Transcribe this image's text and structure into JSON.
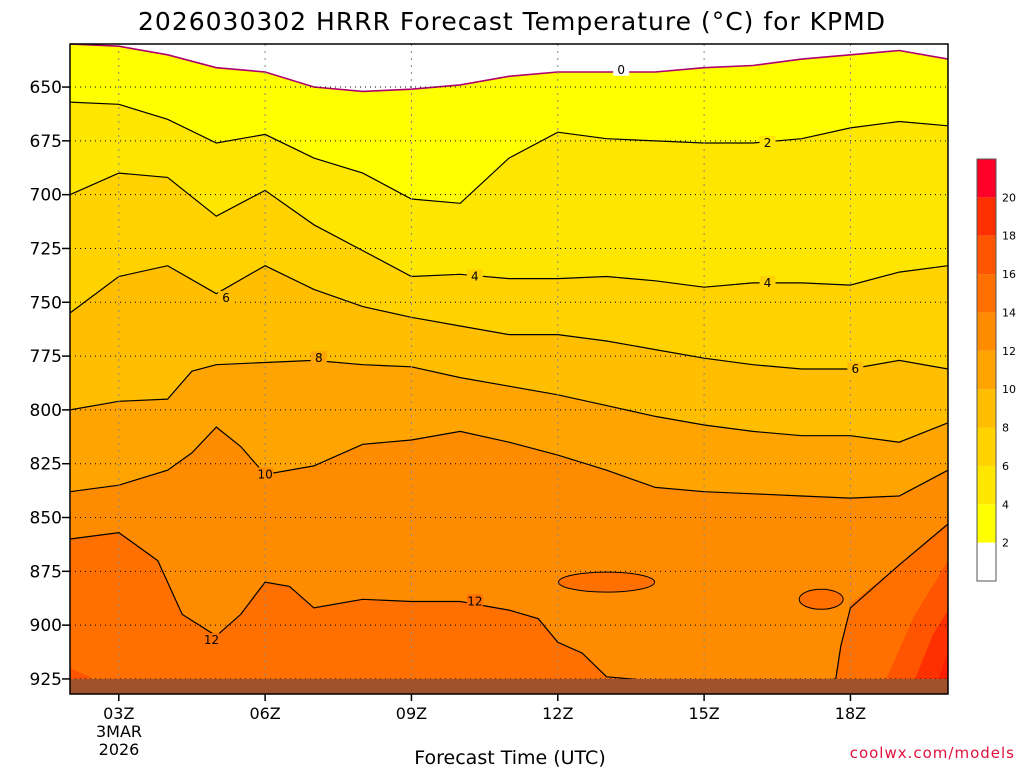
{
  "chart_data": {
    "type": "contour",
    "title": "2026030302 HRRR Forecast Temperature (°C) for KPMD",
    "xlabel": "Forecast Time (UTC)",
    "ylabel": "",
    "x_ticks": [
      "03Z",
      "06Z",
      "09Z",
      "12Z",
      "15Z",
      "18Z"
    ],
    "x_date_lines": [
      "3MAR",
      "2026"
    ],
    "xlim_hours": [
      2,
      20
    ],
    "y_ticks": [
      650,
      675,
      700,
      725,
      750,
      775,
      800,
      825,
      850,
      875,
      900,
      925
    ],
    "ylim_hPa": [
      630,
      932
    ],
    "y_inverted": true,
    "grid": true,
    "colorbar_levels": [
      2,
      4,
      6,
      8,
      10,
      12,
      14,
      16,
      18,
      20
    ],
    "colorbar_colors": [
      "#ffffff",
      "#ffff00",
      "#ffe600",
      "#ffd200",
      "#ffbe00",
      "#ffa400",
      "#ff8c00",
      "#ff7000",
      "#ff5400",
      "#ff3000",
      "#ff0028"
    ],
    "terrain_color": "#a0522d",
    "contour_labels": [
      "0",
      "2",
      "4",
      "4",
      "6",
      "6",
      "8",
      "10",
      "12",
      "12"
    ],
    "isotherms": [
      {
        "t": 0,
        "points": [
          [
            2,
            630
          ],
          [
            3,
            631
          ],
          [
            4,
            635
          ],
          [
            5,
            641
          ],
          [
            6,
            643
          ],
          [
            7,
            650
          ],
          [
            8,
            652
          ],
          [
            9,
            651
          ],
          [
            10,
            649
          ],
          [
            11,
            645
          ],
          [
            12,
            643
          ],
          [
            13,
            643
          ],
          [
            14,
            643
          ],
          [
            15,
            641
          ],
          [
            16,
            640
          ],
          [
            17,
            637
          ],
          [
            18,
            635
          ],
          [
            19,
            633
          ],
          [
            20,
            637
          ]
        ]
      },
      {
        "t": 2,
        "points": [
          [
            2,
            657
          ],
          [
            3,
            658
          ],
          [
            4,
            665
          ],
          [
            5,
            676
          ],
          [
            6,
            672
          ],
          [
            7,
            683
          ],
          [
            8,
            690
          ],
          [
            9,
            702
          ],
          [
            10,
            704
          ],
          [
            11,
            683
          ],
          [
            12,
            671
          ],
          [
            13,
            674
          ],
          [
            14,
            675
          ],
          [
            15,
            676
          ],
          [
            16,
            676
          ],
          [
            17,
            674
          ],
          [
            18,
            669
          ],
          [
            19,
            666
          ],
          [
            20,
            668
          ]
        ]
      },
      {
        "t": 4,
        "points": [
          [
            2,
            700
          ],
          [
            3,
            690
          ],
          [
            4,
            692
          ],
          [
            5,
            710
          ],
          [
            6,
            698
          ],
          [
            7,
            714
          ],
          [
            8,
            726
          ],
          [
            9,
            738
          ],
          [
            10,
            737
          ],
          [
            11,
            739
          ],
          [
            12,
            739
          ],
          [
            13,
            738
          ],
          [
            14,
            740
          ],
          [
            15,
            743
          ],
          [
            16,
            741
          ],
          [
            17,
            741
          ],
          [
            18,
            742
          ],
          [
            19,
            736
          ],
          [
            20,
            733
          ]
        ]
      },
      {
        "t": 6,
        "points": [
          [
            2,
            755
          ],
          [
            3,
            738
          ],
          [
            4,
            733
          ],
          [
            5,
            746
          ],
          [
            6,
            733
          ],
          [
            7,
            744
          ],
          [
            8,
            752
          ],
          [
            9,
            757
          ],
          [
            10,
            761
          ],
          [
            11,
            765
          ],
          [
            12,
            765
          ],
          [
            13,
            768
          ],
          [
            14,
            772
          ],
          [
            15,
            776
          ],
          [
            16,
            779
          ],
          [
            17,
            781
          ],
          [
            18,
            781
          ],
          [
            19,
            777
          ],
          [
            20,
            781
          ]
        ]
      },
      {
        "t": 8,
        "points": [
          [
            2,
            800
          ],
          [
            3,
            796
          ],
          [
            4,
            795
          ],
          [
            4.5,
            782
          ],
          [
            5,
            779
          ],
          [
            6,
            778
          ],
          [
            7,
            777
          ],
          [
            8,
            779
          ],
          [
            9,
            780
          ],
          [
            10,
            785
          ],
          [
            11,
            789
          ],
          [
            12,
            793
          ],
          [
            13,
            798
          ],
          [
            14,
            803
          ],
          [
            15,
            807
          ],
          [
            16,
            810
          ],
          [
            17,
            812
          ],
          [
            18,
            812
          ],
          [
            19,
            815
          ],
          [
            20,
            806
          ]
        ]
      },
      {
        "t": 10,
        "points": [
          [
            2,
            838
          ],
          [
            3,
            835
          ],
          [
            4,
            828
          ],
          [
            4.5,
            820
          ],
          [
            5,
            808
          ],
          [
            5.5,
            817
          ],
          [
            6,
            830
          ],
          [
            7,
            826
          ],
          [
            8,
            816
          ],
          [
            9,
            814
          ],
          [
            10,
            810
          ],
          [
            11,
            815
          ],
          [
            12,
            821
          ],
          [
            13,
            828
          ],
          [
            14,
            836
          ],
          [
            15,
            838
          ],
          [
            16,
            839
          ],
          [
            17,
            840
          ],
          [
            18,
            841
          ],
          [
            19,
            840
          ],
          [
            20,
            828
          ]
        ]
      },
      {
        "t": 12,
        "points": [
          [
            2,
            860
          ],
          [
            3,
            857
          ],
          [
            3.8,
            870
          ],
          [
            4.3,
            895
          ],
          [
            5,
            905
          ],
          [
            5.5,
            895
          ],
          [
            6,
            880
          ],
          [
            6.5,
            882
          ],
          [
            7,
            892
          ],
          [
            8,
            888
          ],
          [
            9,
            889
          ],
          [
            10,
            889
          ],
          [
            11,
            893
          ],
          [
            11.6,
            897
          ],
          [
            12,
            908
          ],
          [
            12.5,
            913
          ],
          [
            13,
            924
          ],
          [
            14,
            926
          ],
          [
            15,
            927
          ],
          [
            16,
            928
          ],
          [
            17,
            928
          ],
          [
            17.7,
            925
          ],
          [
            17.8,
            910
          ],
          [
            18,
            892
          ],
          [
            19,
            872
          ],
          [
            20,
            853
          ]
        ]
      }
    ]
  }
}
